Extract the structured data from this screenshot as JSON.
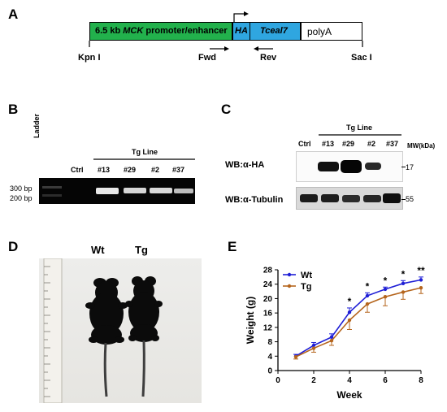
{
  "panels": {
    "a": {
      "letter": "A",
      "promoter_prefix": "6.5 kb ",
      "promoter_gene": "MCK",
      "promoter_suffix": " promoter/enhancer",
      "ha": "HA",
      "gene": "Tceal7",
      "polya": "polyA",
      "kpn": "Kpn I",
      "fwd": "Fwd",
      "rev": "Rev",
      "sac": "Sac I",
      "colors": {
        "promoter": "#22b14c",
        "gene": "#2fa6e0",
        "polya": "#ffffff"
      }
    },
    "b": {
      "letter": "B",
      "ladder": "Ladder",
      "ctrl": "Ctrl",
      "tg_line": "Tg Line",
      "lanes": [
        "#13",
        "#29",
        "#2",
        "#37"
      ],
      "bp300": "300 bp",
      "bp200": "200 bp"
    },
    "c": {
      "letter": "C",
      "ctrl": "Ctrl",
      "tg_line": "Tg Line",
      "lanes": [
        "#13",
        "#29",
        "#2",
        "#37"
      ],
      "mw": "MW(kDa)",
      "wb_ha": "WB:α-HA",
      "wb_tub": "WB:α-Tubulin",
      "mw17": "17",
      "mw55": "55"
    },
    "d": {
      "letter": "D",
      "wt": "Wt",
      "tg": "Tg"
    },
    "e": {
      "letter": "E"
    }
  },
  "chart_data": {
    "type": "line",
    "xlabel": "Week",
    "ylabel": "Weight (g)",
    "xlim": [
      0,
      8
    ],
    "ylim": [
      0,
      28
    ],
    "xticks": [
      0,
      2,
      4,
      6,
      8
    ],
    "yticks": [
      0,
      4,
      8,
      12,
      16,
      20,
      24,
      28
    ],
    "legend_position": "top-left",
    "x": [
      1,
      2,
      3,
      4,
      5,
      6,
      7,
      8
    ],
    "series": [
      {
        "name": "Wt",
        "color": "#1f1fd6",
        "values": [
          4.0,
          7.0,
          9.3,
          16.2,
          20.8,
          22.6,
          24.2,
          25.2
        ],
        "errors": [
          0.5,
          0.8,
          0.9,
          1.2,
          0.8,
          0.6,
          0.8,
          0.8
        ]
      },
      {
        "name": "Tg",
        "color": "#b5651d",
        "values": [
          3.8,
          6.2,
          8.3,
          14.0,
          18.5,
          20.5,
          21.8,
          23.0
        ],
        "errors": [
          0.6,
          1.1,
          1.3,
          2.6,
          2.3,
          2.5,
          2.0,
          1.6
        ]
      }
    ],
    "significance": [
      {
        "x": 4,
        "label": "*"
      },
      {
        "x": 5,
        "label": "*"
      },
      {
        "x": 6,
        "label": "*"
      },
      {
        "x": 7,
        "label": "*"
      },
      {
        "x": 8,
        "label": "**"
      }
    ]
  }
}
